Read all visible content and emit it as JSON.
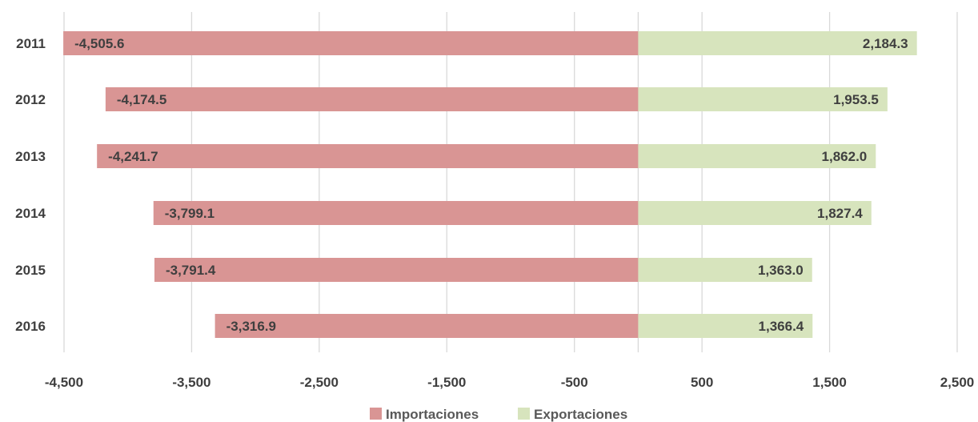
{
  "chart_data": {
    "type": "bar",
    "orientation": "horizontal",
    "stacked": true,
    "categories": [
      "2011",
      "2012",
      "2013",
      "2014",
      "2015",
      "2016"
    ],
    "series": [
      {
        "name": "Importaciones",
        "color": "#d99594",
        "values": [
          -4505.6,
          -4174.5,
          -4241.7,
          -3799.1,
          -3791.4,
          -3316.9
        ],
        "labels": [
          "-4,505.6",
          "-4,174.5",
          "-4,241.7",
          "-3,799.1",
          "-3,791.4",
          "-3,316.9"
        ]
      },
      {
        "name": "Exportaciones",
        "color": "#d7e4bd",
        "values": [
          2184.3,
          1953.5,
          1862.0,
          1827.4,
          1363.0,
          1366.4
        ],
        "labels": [
          "2,184.3",
          "1,953.5",
          "1,862.0",
          "1,827.4",
          "1,363.0",
          "1,366.4"
        ]
      }
    ],
    "xlim": [
      -4500,
      2500
    ],
    "x_ticks": [
      -4500,
      -3500,
      -2500,
      -1500,
      -500,
      500,
      1500,
      2500
    ],
    "x_tick_labels": [
      "-4,500",
      "-3,500",
      "-2,500",
      "-1,500",
      "-500",
      "500",
      "1,500",
      "2,500"
    ],
    "zero_line": 0,
    "grid": "vertical",
    "legend": "bottom"
  }
}
